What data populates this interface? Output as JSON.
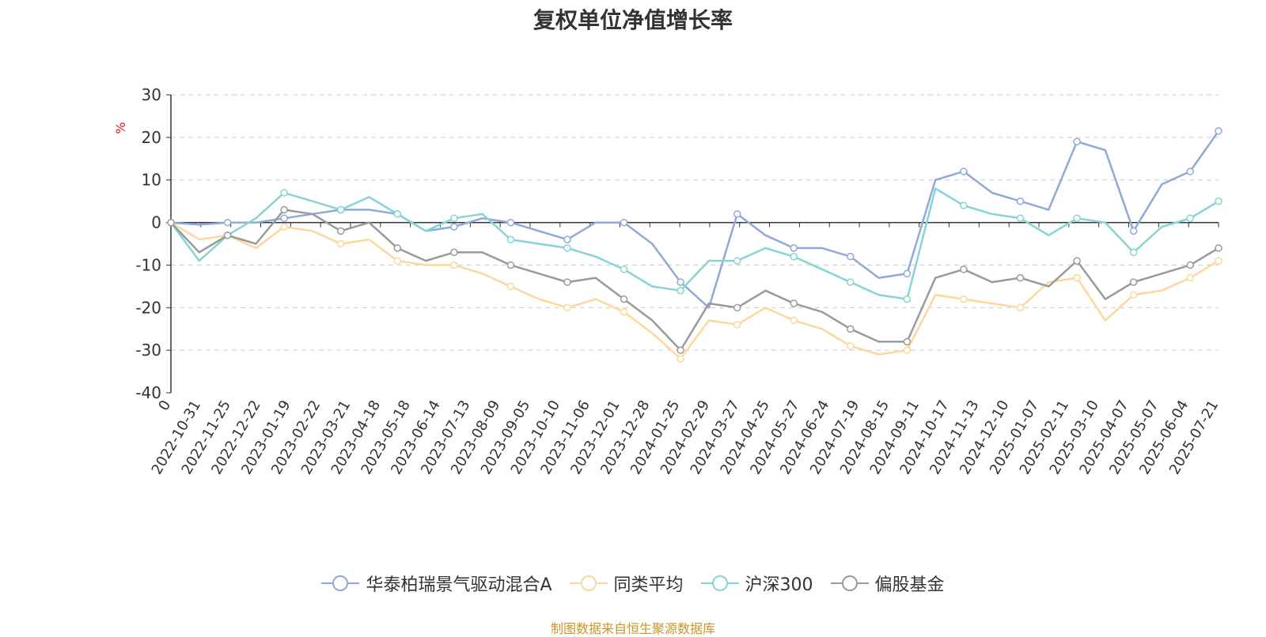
{
  "chart_data": {
    "type": "line",
    "title": "复权单位净值增长率",
    "ylabel": "%",
    "ylim": [
      -40,
      30
    ],
    "yticks": [
      30,
      20,
      10,
      0,
      -10,
      -20,
      -30,
      -40
    ],
    "grid": true,
    "legend_position": "bottom",
    "x_tick_labels": [
      "0",
      "2022-10-31",
      "2022-11-25",
      "2022-12-22",
      "2023-01-19",
      "2023-02-22",
      "2023-03-21",
      "2023-04-18",
      "2023-05-18",
      "2023-06-14",
      "2023-07-13",
      "2023-08-09",
      "2023-09-05",
      "2023-10-10",
      "2023-11-06",
      "2023-12-01",
      "2023-12-28",
      "2024-01-25",
      "2024-02-29",
      "2024-03-27",
      "2024-04-25",
      "2024-05-27",
      "2024-06-24",
      "2024-07-19",
      "2024-08-15",
      "2024-09-11",
      "2024-10-17",
      "2024-11-13",
      "2024-12-10",
      "2025-01-07",
      "2025-02-11",
      "2025-03-10",
      "2025-04-07",
      "2025-05-07",
      "2025-06-04",
      "2025-07-21"
    ],
    "series": [
      {
        "name": "华泰柏瑞景气驱动混合A",
        "color": "#8fa9d8",
        "values": [
          0,
          -0.5,
          0,
          0,
          1,
          2,
          3,
          3,
          2,
          -2,
          -1,
          1,
          0,
          -2,
          -4,
          0,
          0,
          -5,
          -14,
          -20,
          2,
          -3,
          -6,
          -6,
          -8,
          -13,
          -12,
          10,
          12,
          7,
          5,
          3,
          19,
          17,
          -2,
          9,
          12,
          21.5
        ]
      },
      {
        "name": "同类平均",
        "color": "#fdd89a",
        "values": [
          0,
          -4,
          -3,
          -6,
          -1,
          -2,
          -5,
          -4,
          -9,
          -10,
          -10,
          -12,
          -15,
          -18,
          -20,
          -18,
          -21,
          -26,
          -32,
          -23,
          -24,
          -20,
          -23,
          -25,
          -29,
          -31,
          -30,
          -17,
          -18,
          -19,
          -20,
          -14,
          -13,
          -23,
          -17,
          -16,
          -13,
          -9
        ]
      },
      {
        "name": "沪深300",
        "color": "#85d4d6",
        "values": [
          0,
          -9,
          -3,
          1,
          7,
          5,
          3,
          6,
          2,
          -2,
          1,
          2,
          -4,
          -5,
          -6,
          -8,
          -11,
          -15,
          -16,
          -9,
          -9,
          -6,
          -8,
          -11,
          -14,
          -17,
          -18,
          8,
          4,
          2,
          1,
          -3,
          1,
          0,
          -7,
          -1,
          1,
          5
        ]
      },
      {
        "name": "偏股基金",
        "color": "#9a9a9a",
        "values": [
          0,
          -7,
          -3,
          -5,
          3,
          2,
          -2,
          0,
          -6,
          -9,
          -7,
          -7,
          -10,
          -12,
          -14,
          -13,
          -18,
          -23,
          -30,
          -19,
          -20,
          -16,
          -19,
          -21,
          -25,
          -28,
          -28,
          -13,
          -11,
          -14,
          -13,
          -15,
          -9,
          -18,
          -14,
          -12,
          -10,
          -6
        ]
      }
    ]
  },
  "source_note": "制图数据来自恒生聚源数据库"
}
